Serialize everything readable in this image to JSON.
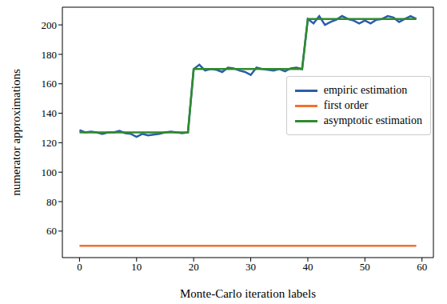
{
  "chart_data": {
    "type": "line",
    "x_label": "Monte-Carlo iteration labels",
    "y_label": "numerator approximations",
    "x": [
      0,
      1,
      2,
      3,
      4,
      5,
      6,
      7,
      8,
      9,
      10,
      11,
      12,
      13,
      14,
      15,
      16,
      17,
      18,
      19,
      20,
      21,
      22,
      23,
      24,
      25,
      26,
      27,
      28,
      29,
      30,
      31,
      32,
      33,
      34,
      35,
      36,
      37,
      38,
      39,
      40,
      41,
      42,
      43,
      44,
      45,
      46,
      47,
      48,
      49,
      50,
      51,
      52,
      53,
      54,
      55,
      56,
      57,
      58,
      59
    ],
    "series": [
      {
        "name": "empiric estimation",
        "color": "#2a5ea8",
        "values": [
          128.5,
          127,
          127.5,
          127,
          126,
          127,
          127,
          128,
          126.5,
          126,
          124,
          126,
          125,
          125.5,
          126,
          127,
          127.5,
          127,
          126.5,
          127,
          170,
          173,
          169,
          170,
          169.5,
          168,
          171,
          170.5,
          169,
          168,
          166,
          171,
          170,
          169.5,
          169,
          170,
          168.5,
          170.5,
          171,
          170,
          204,
          201,
          206,
          200,
          202,
          203.5,
          206,
          204,
          203,
          201,
          203,
          201,
          203.5,
          204,
          206,
          205,
          202,
          204,
          206,
          204
        ]
      },
      {
        "name": "first order",
        "color": "#f36f2a",
        "values": [
          50,
          50,
          50,
          50,
          50,
          50,
          50,
          50,
          50,
          50,
          50,
          50,
          50,
          50,
          50,
          50,
          50,
          50,
          50,
          50,
          50,
          50,
          50,
          50,
          50,
          50,
          50,
          50,
          50,
          50,
          50,
          50,
          50,
          50,
          50,
          50,
          50,
          50,
          50,
          50,
          50,
          50,
          50,
          50,
          50,
          50,
          50,
          50,
          50,
          50,
          50,
          50,
          50,
          50,
          50,
          50,
          50,
          50,
          50,
          50
        ]
      },
      {
        "name": "asymptotic estimation",
        "color": "#2e8b2e",
        "values": [
          127,
          127,
          127,
          127,
          127,
          127,
          127,
          127,
          127,
          127,
          127,
          127,
          127,
          127,
          127,
          127,
          127,
          127,
          127,
          127,
          170,
          170,
          170,
          170,
          170,
          170,
          170,
          170,
          170,
          170,
          170,
          170,
          170,
          170,
          170,
          170,
          170,
          170,
          170,
          170,
          204,
          204,
          204,
          204,
          204,
          204,
          204,
          204,
          204,
          204,
          204,
          204,
          204,
          204,
          204,
          204,
          204,
          204,
          204,
          204
        ]
      }
    ],
    "xlim": [
      -3,
      62
    ],
    "ylim": [
      42,
      212
    ],
    "xticks": [
      0,
      10,
      20,
      30,
      40,
      50,
      60
    ],
    "yticks": [
      60,
      80,
      100,
      120,
      140,
      160,
      180,
      200
    ],
    "grid": false,
    "legend": "right"
  }
}
